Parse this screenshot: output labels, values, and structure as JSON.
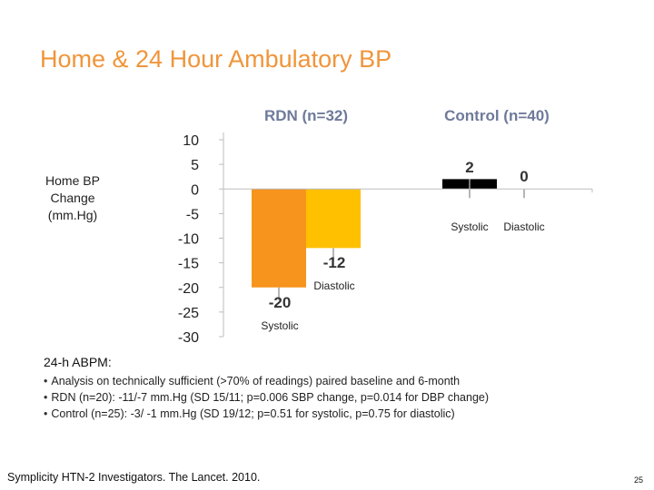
{
  "slide": {
    "title": "Home & 24 Hour Ambulatory BP",
    "ylabel_line1": "Home BP",
    "ylabel_line2": "Change",
    "ylabel_line3": "(mm.Hg)",
    "abpm_heading": "24-h ABPM:",
    "bullets": [
      "Analysis on technically sufficient (>70% of readings) paired baseline and 6-month",
      "RDN (n=20): -11/-7 mm.Hg (SD 15/11; p=0.006 SBP change, p=0.014 for DBP change)",
      "Control (n=25): -3/ -1 mm.Hg (SD 19/12; p=0.51 for systolic, p=0.75 for diastolic)"
    ],
    "citation": "Symplicity HTN-2 Investigators.  The Lancet. 2010.",
    "page_number": "25"
  },
  "chart_data": {
    "type": "bar",
    "title": "",
    "ylim": [
      -30,
      10
    ],
    "yticks": [
      "10",
      "5",
      "0",
      "-5",
      "-10",
      "-15",
      "-20",
      "-25",
      "-30"
    ],
    "ytick_values": [
      10,
      5,
      0,
      -5,
      -10,
      -15,
      -20,
      -25,
      -30
    ],
    "groups": [
      {
        "name": "RDN (n=32)",
        "bars": [
          {
            "label": "Systolic",
            "value": -20,
            "value_label": "-20",
            "color": "#f7941d"
          },
          {
            "label": "Diastolic",
            "value": -12,
            "value_label": "-12",
            "color": "#ffc000"
          }
        ]
      },
      {
        "name": "Control (n=40)",
        "bars": [
          {
            "label": "Systolic",
            "value": 2,
            "value_label": "2",
            "color": "#000000"
          },
          {
            "label": "Diastolic",
            "value": 0,
            "value_label": "0",
            "color": "#000000"
          }
        ]
      }
    ],
    "grid": false
  }
}
